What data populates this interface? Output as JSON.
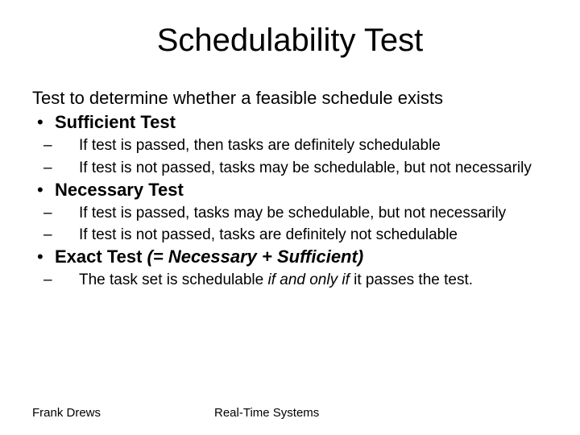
{
  "title": "Schedulability Test",
  "intro": "Test to determine whether a feasible schedule exists",
  "sections": [
    {
      "heading": "Sufficient Test",
      "bullets": [
        "If test is passed, then tasks are definitely schedulable",
        "If test is not passed, tasks may be schedulable, but not necessarily"
      ]
    },
    {
      "heading": "Necessary Test",
      "bullets": [
        "If test is passed, tasks may be schedulable, but not necessarily",
        "If test is not passed, tasks are definitely not schedulable"
      ]
    },
    {
      "heading_prefix": "Exact Test",
      "heading_suffix_italic": " (= Necessary + Sufficient)",
      "bullets_special": {
        "pre": "The task set is schedulable ",
        "ital": "if and only if",
        "post": " it passes the test."
      }
    }
  ],
  "footer": {
    "author": "Frank Drews",
    "course": "Real-Time Systems"
  },
  "colors": {
    "text": "#000000",
    "background": "#ffffff"
  },
  "typography": {
    "title_fontsize": 40,
    "body_fontsize": 22,
    "sub_fontsize": 19,
    "footer_fontsize": 15,
    "font_family": "Arial"
  }
}
